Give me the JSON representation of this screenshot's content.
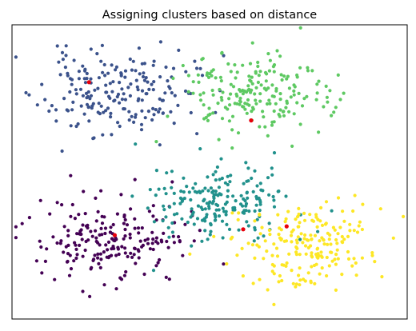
{
  "chart_data": {
    "type": "scatter",
    "title": "Assigning clusters based on distance",
    "xlabel": "",
    "ylabel": "",
    "xlim": [
      0,
      100
    ],
    "ylim": [
      0,
      100
    ],
    "axis_ticks": false,
    "grid": false,
    "legend": "none",
    "centroid_color": "#e8000b",
    "clusters": [
      {
        "color": "#3b528b",
        "center": [
          26,
          77
        ],
        "spread": [
          9.5,
          7
        ],
        "count": 200,
        "seed": 11
      },
      {
        "color": "#5ec962",
        "center": [
          61,
          76
        ],
        "spread": [
          9.5,
          7
        ],
        "count": 200,
        "seed": 23
      },
      {
        "color": "#440154",
        "center": [
          26,
          27
        ],
        "spread": [
          9.5,
          7
        ],
        "count": 200,
        "seed": 37
      },
      {
        "color": "#21918c",
        "center": [
          53,
          40
        ],
        "spread": [
          8.5,
          7
        ],
        "count": 200,
        "seed": 41
      },
      {
        "color": "#fde725",
        "center": [
          74,
          25
        ],
        "spread": [
          8.5,
          7
        ],
        "count": 200,
        "seed": 53
      }
    ],
    "centroids": [
      {
        "x": 19.5,
        "y": 80.5
      },
      {
        "x": 60.5,
        "y": 67.5
      },
      {
        "x": 26.0,
        "y": 28.5
      },
      {
        "x": 58.5,
        "y": 30.5
      },
      {
        "x": 69.5,
        "y": 31.5
      }
    ]
  }
}
